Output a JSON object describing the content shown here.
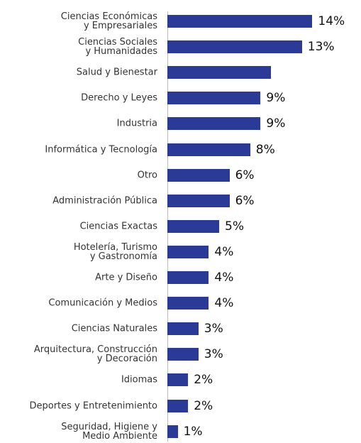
{
  "chart_data": {
    "type": "bar",
    "orientation": "horizontal",
    "color": "#2b3a97",
    "categories": [
      "Ciencias Económicas\ny Empresariales",
      "Ciencias Sociales\ny Humanidades",
      "Salud y Bienestar",
      "Derecho y Leyes",
      "Industria",
      "Informática y Tecnología",
      "Otro",
      "Administración Pública",
      "Ciencias Exactas",
      "Hotelería, Turismo\ny Gastronomía",
      "Arte y Diseño",
      "Comunicación y Medios",
      "Ciencias Naturales",
      "Arquitectura, Construcción\ny Decoración",
      "Idiomas",
      "Deportes y Entretenimiento",
      "Seguridad, Higiene y\nMedio Ambiente"
    ],
    "values": [
      14,
      13,
      10,
      9,
      9,
      8,
      6,
      6,
      5,
      4,
      4,
      4,
      3,
      3,
      2,
      2,
      1
    ],
    "value_labels": [
      "14%",
      "13%",
      null,
      "9%",
      "9%",
      "8%",
      "6%",
      "6%",
      "5%",
      "4%",
      "4%",
      "4%",
      "3%",
      "3%",
      "2%",
      "2%",
      "1%"
    ],
    "xlim": [
      0,
      15
    ]
  }
}
